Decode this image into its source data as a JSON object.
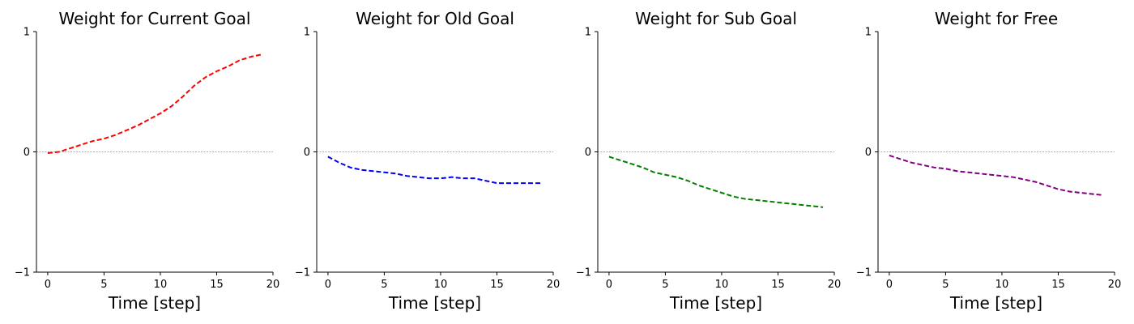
{
  "chart_data": [
    {
      "type": "line",
      "title": "Weight for Current Goal",
      "xlabel": "Time [step]",
      "ylabel": "",
      "xlim": [
        -1,
        20
      ],
      "ylim": [
        -1,
        1
      ],
      "xticks": [
        "0",
        "5",
        "10",
        "15",
        "20"
      ],
      "yticks": [
        "−1",
        "0",
        "1"
      ],
      "reference_line_y": 0,
      "color": "#ff0000",
      "series": [
        {
          "x": [
            0,
            1,
            2,
            3,
            4,
            5,
            6,
            7,
            8,
            9,
            10,
            11,
            12,
            13,
            14,
            15,
            16,
            17,
            18,
            19
          ],
          "values": [
            -0.01,
            0.0,
            0.03,
            0.06,
            0.09,
            0.11,
            0.14,
            0.18,
            0.22,
            0.27,
            0.32,
            0.38,
            0.46,
            0.55,
            0.62,
            0.67,
            0.71,
            0.76,
            0.79,
            0.81
          ]
        }
      ]
    },
    {
      "type": "line",
      "title": "Weight for Old Goal",
      "xlabel": "Time [step]",
      "ylabel": "",
      "xlim": [
        -1,
        20
      ],
      "ylim": [
        -1,
        1
      ],
      "xticks": [
        "0",
        "5",
        "10",
        "15",
        "20"
      ],
      "yticks": [
        "−1",
        "0",
        "1"
      ],
      "reference_line_y": 0,
      "color": "#0000ff",
      "series": [
        {
          "x": [
            0,
            1,
            2,
            3,
            4,
            5,
            6,
            7,
            8,
            9,
            10,
            11,
            12,
            13,
            14,
            15,
            16,
            17,
            18,
            19
          ],
          "values": [
            -0.04,
            -0.09,
            -0.13,
            -0.15,
            -0.16,
            -0.17,
            -0.18,
            -0.2,
            -0.21,
            -0.22,
            -0.22,
            -0.21,
            -0.22,
            -0.22,
            -0.24,
            -0.26,
            -0.26,
            -0.26,
            -0.26,
            -0.26
          ]
        }
      ]
    },
    {
      "type": "line",
      "title": "Weight for Sub Goal",
      "xlabel": "Time [step]",
      "ylabel": "",
      "xlim": [
        -1,
        20
      ],
      "ylim": [
        -1,
        1
      ],
      "xticks": [
        "0",
        "5",
        "10",
        "15",
        "20"
      ],
      "yticks": [
        "−1",
        "0",
        "1"
      ],
      "reference_line_y": 0,
      "color": "#008000",
      "series": [
        {
          "x": [
            0,
            1,
            2,
            3,
            4,
            5,
            6,
            7,
            8,
            9,
            10,
            11,
            12,
            13,
            14,
            15,
            16,
            17,
            18,
            19
          ],
          "values": [
            -0.04,
            -0.07,
            -0.1,
            -0.13,
            -0.17,
            -0.19,
            -0.21,
            -0.24,
            -0.28,
            -0.31,
            -0.34,
            -0.37,
            -0.39,
            -0.4,
            -0.41,
            -0.42,
            -0.43,
            -0.44,
            -0.45,
            -0.46
          ]
        }
      ]
    },
    {
      "type": "line",
      "title": "Weight for Free",
      "xlabel": "Time [step]",
      "ylabel": "",
      "xlim": [
        -1,
        20
      ],
      "ylim": [
        -1,
        1
      ],
      "xticks": [
        "0",
        "5",
        "10",
        "15",
        "20"
      ],
      "yticks": [
        "−1",
        "0",
        "1"
      ],
      "reference_line_y": 0,
      "color": "#800080",
      "series": [
        {
          "x": [
            0,
            1,
            2,
            3,
            4,
            5,
            6,
            7,
            8,
            9,
            10,
            11,
            12,
            13,
            14,
            15,
            16,
            17,
            18,
            19
          ],
          "values": [
            -0.03,
            -0.06,
            -0.09,
            -0.11,
            -0.13,
            -0.14,
            -0.16,
            -0.17,
            -0.18,
            -0.19,
            -0.2,
            -0.21,
            -0.23,
            -0.25,
            -0.28,
            -0.31,
            -0.33,
            -0.34,
            -0.35,
            -0.36
          ]
        }
      ]
    }
  ]
}
